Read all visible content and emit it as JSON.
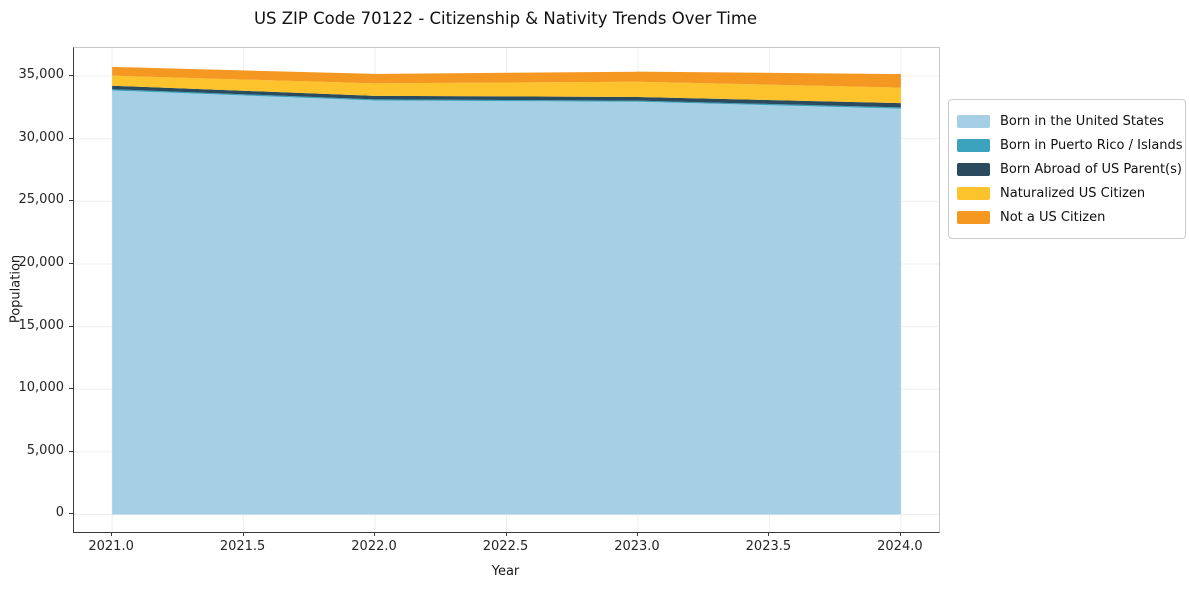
{
  "title": "US ZIP Code 70122 - Citizenship & Nativity Trends Over Time",
  "axes": {
    "x_label": "Year",
    "y_label": "Population",
    "x_tick_labels": [
      "2021.0",
      "2021.5",
      "2022.0",
      "2022.5",
      "2023.0",
      "2023.5",
      "2024.0"
    ],
    "x_tick_values": [
      2021.0,
      2021.5,
      2022.0,
      2022.5,
      2023.0,
      2023.5,
      2024.0
    ],
    "y_tick_labels": [
      "0",
      "5,000",
      "10,000",
      "15,000",
      "20,000",
      "25,000",
      "30,000",
      "35,000"
    ],
    "y_tick_values": [
      0,
      5000,
      10000,
      15000,
      20000,
      25000,
      30000,
      35000
    ]
  },
  "legend": {
    "items": [
      {
        "label": "Born in the United States",
        "color": "#a5cfe5"
      },
      {
        "label": "Born in Puerto Rico / Islands",
        "color": "#3ba3be"
      },
      {
        "label": "Born Abroad of US Parent(s)",
        "color": "#2a4a5e"
      },
      {
        "label": "Naturalized US Citizen",
        "color": "#fcc32d"
      },
      {
        "label": "Not a US Citizen",
        "color": "#f59821"
      }
    ]
  },
  "chart_data": {
    "type": "area",
    "stacked": true,
    "title": "US ZIP Code 70122 - Citizenship & Nativity Trends Over Time",
    "xlabel": "Year",
    "ylabel": "Population",
    "x": [
      2021,
      2022,
      2023,
      2024
    ],
    "series": [
      {
        "name": "Born in the United States",
        "color": "#a5cfe5",
        "values": [
          33850,
          33050,
          32950,
          32400
        ]
      },
      {
        "name": "Born in Puerto Rico / Islands",
        "color": "#3ba3be",
        "values": [
          100,
          90,
          90,
          100
        ]
      },
      {
        "name": "Born Abroad of US Parent(s)",
        "color": "#2a4a5e",
        "values": [
          280,
          280,
          290,
          340
        ]
      },
      {
        "name": "Naturalized US Citizen",
        "color": "#fcc32d",
        "values": [
          800,
          1000,
          1220,
          1240
        ]
      },
      {
        "name": "Not a US Citizen",
        "color": "#f59821",
        "values": [
          700,
          750,
          800,
          1080
        ]
      }
    ],
    "totals": [
      35730,
      35170,
      35350,
      35160
    ],
    "xlim": [
      2020.855,
      2024.145
    ],
    "ylim": [
      -1400,
      37240
    ],
    "grid": true,
    "grid_color": "#efefef",
    "legend_position": "outside-right"
  }
}
